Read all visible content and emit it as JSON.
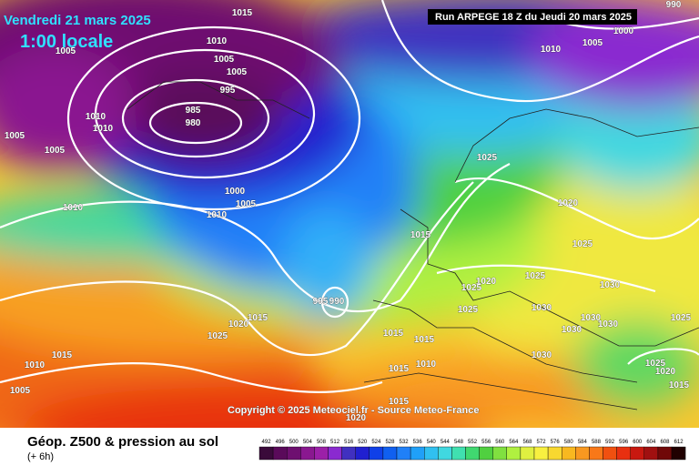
{
  "header": {
    "date": "Vendredi 21 mars 2025",
    "time": "1:00 locale",
    "run": "Run ARPEGE 18 Z du Jeudi 20 mars 2025"
  },
  "copyright": "Copyright © 2025 Meteociel.fr - Source Meteo-France",
  "footer": {
    "title": "Géop. Z500 & pression au sol",
    "subtitle": "(+ 6h)"
  },
  "isobar_labels": [
    "1015",
    "1010",
    "1005",
    "1005",
    "1005",
    "995",
    "985",
    "980",
    "1010",
    "1010",
    "1005",
    "1005",
    "1000",
    "1005",
    "1010",
    "1010",
    "1010",
    "1005",
    "1000",
    "990",
    "1025",
    "1020",
    "1025",
    "1015",
    "1025",
    "1030",
    "1020",
    "1025",
    "1025",
    "1030",
    "995",
    "990",
    "1020",
    "1015",
    "1025",
    "1015",
    "1010",
    "1005",
    "1030",
    "1030",
    "1030",
    "1025",
    "1025",
    "1020",
    "1015",
    "1015",
    "1015",
    "1010",
    "1015",
    "1015",
    "1020",
    "1030"
  ],
  "scale": {
    "labels": [
      "492",
      "496",
      "500",
      "504",
      "508",
      "512",
      "516",
      "520",
      "524",
      "528",
      "532",
      "536",
      "540",
      "544",
      "548",
      "552",
      "556",
      "560",
      "564",
      "568",
      "572",
      "576",
      "580",
      "584",
      "588",
      "592",
      "596",
      "600",
      "604",
      "608",
      "612"
    ],
    "colors": [
      "#3a0a3a",
      "#5a0a5a",
      "#6e1070",
      "#8a1890",
      "#9c20a8",
      "#8a2ad0",
      "#4030c0",
      "#2020d0",
      "#1040e8",
      "#1060f0",
      "#2080f8",
      "#20a0f8",
      "#30c0f0",
      "#40d8e0",
      "#40e0b0",
      "#40d870",
      "#50d040",
      "#80e040",
      "#b0f040",
      "#e0f040",
      "#f8f040",
      "#f8d830",
      "#f8b820",
      "#f89820",
      "#f87818",
      "#f05010",
      "#e83010",
      "#c81810",
      "#a01010",
      "#700808",
      "#200000"
    ]
  }
}
